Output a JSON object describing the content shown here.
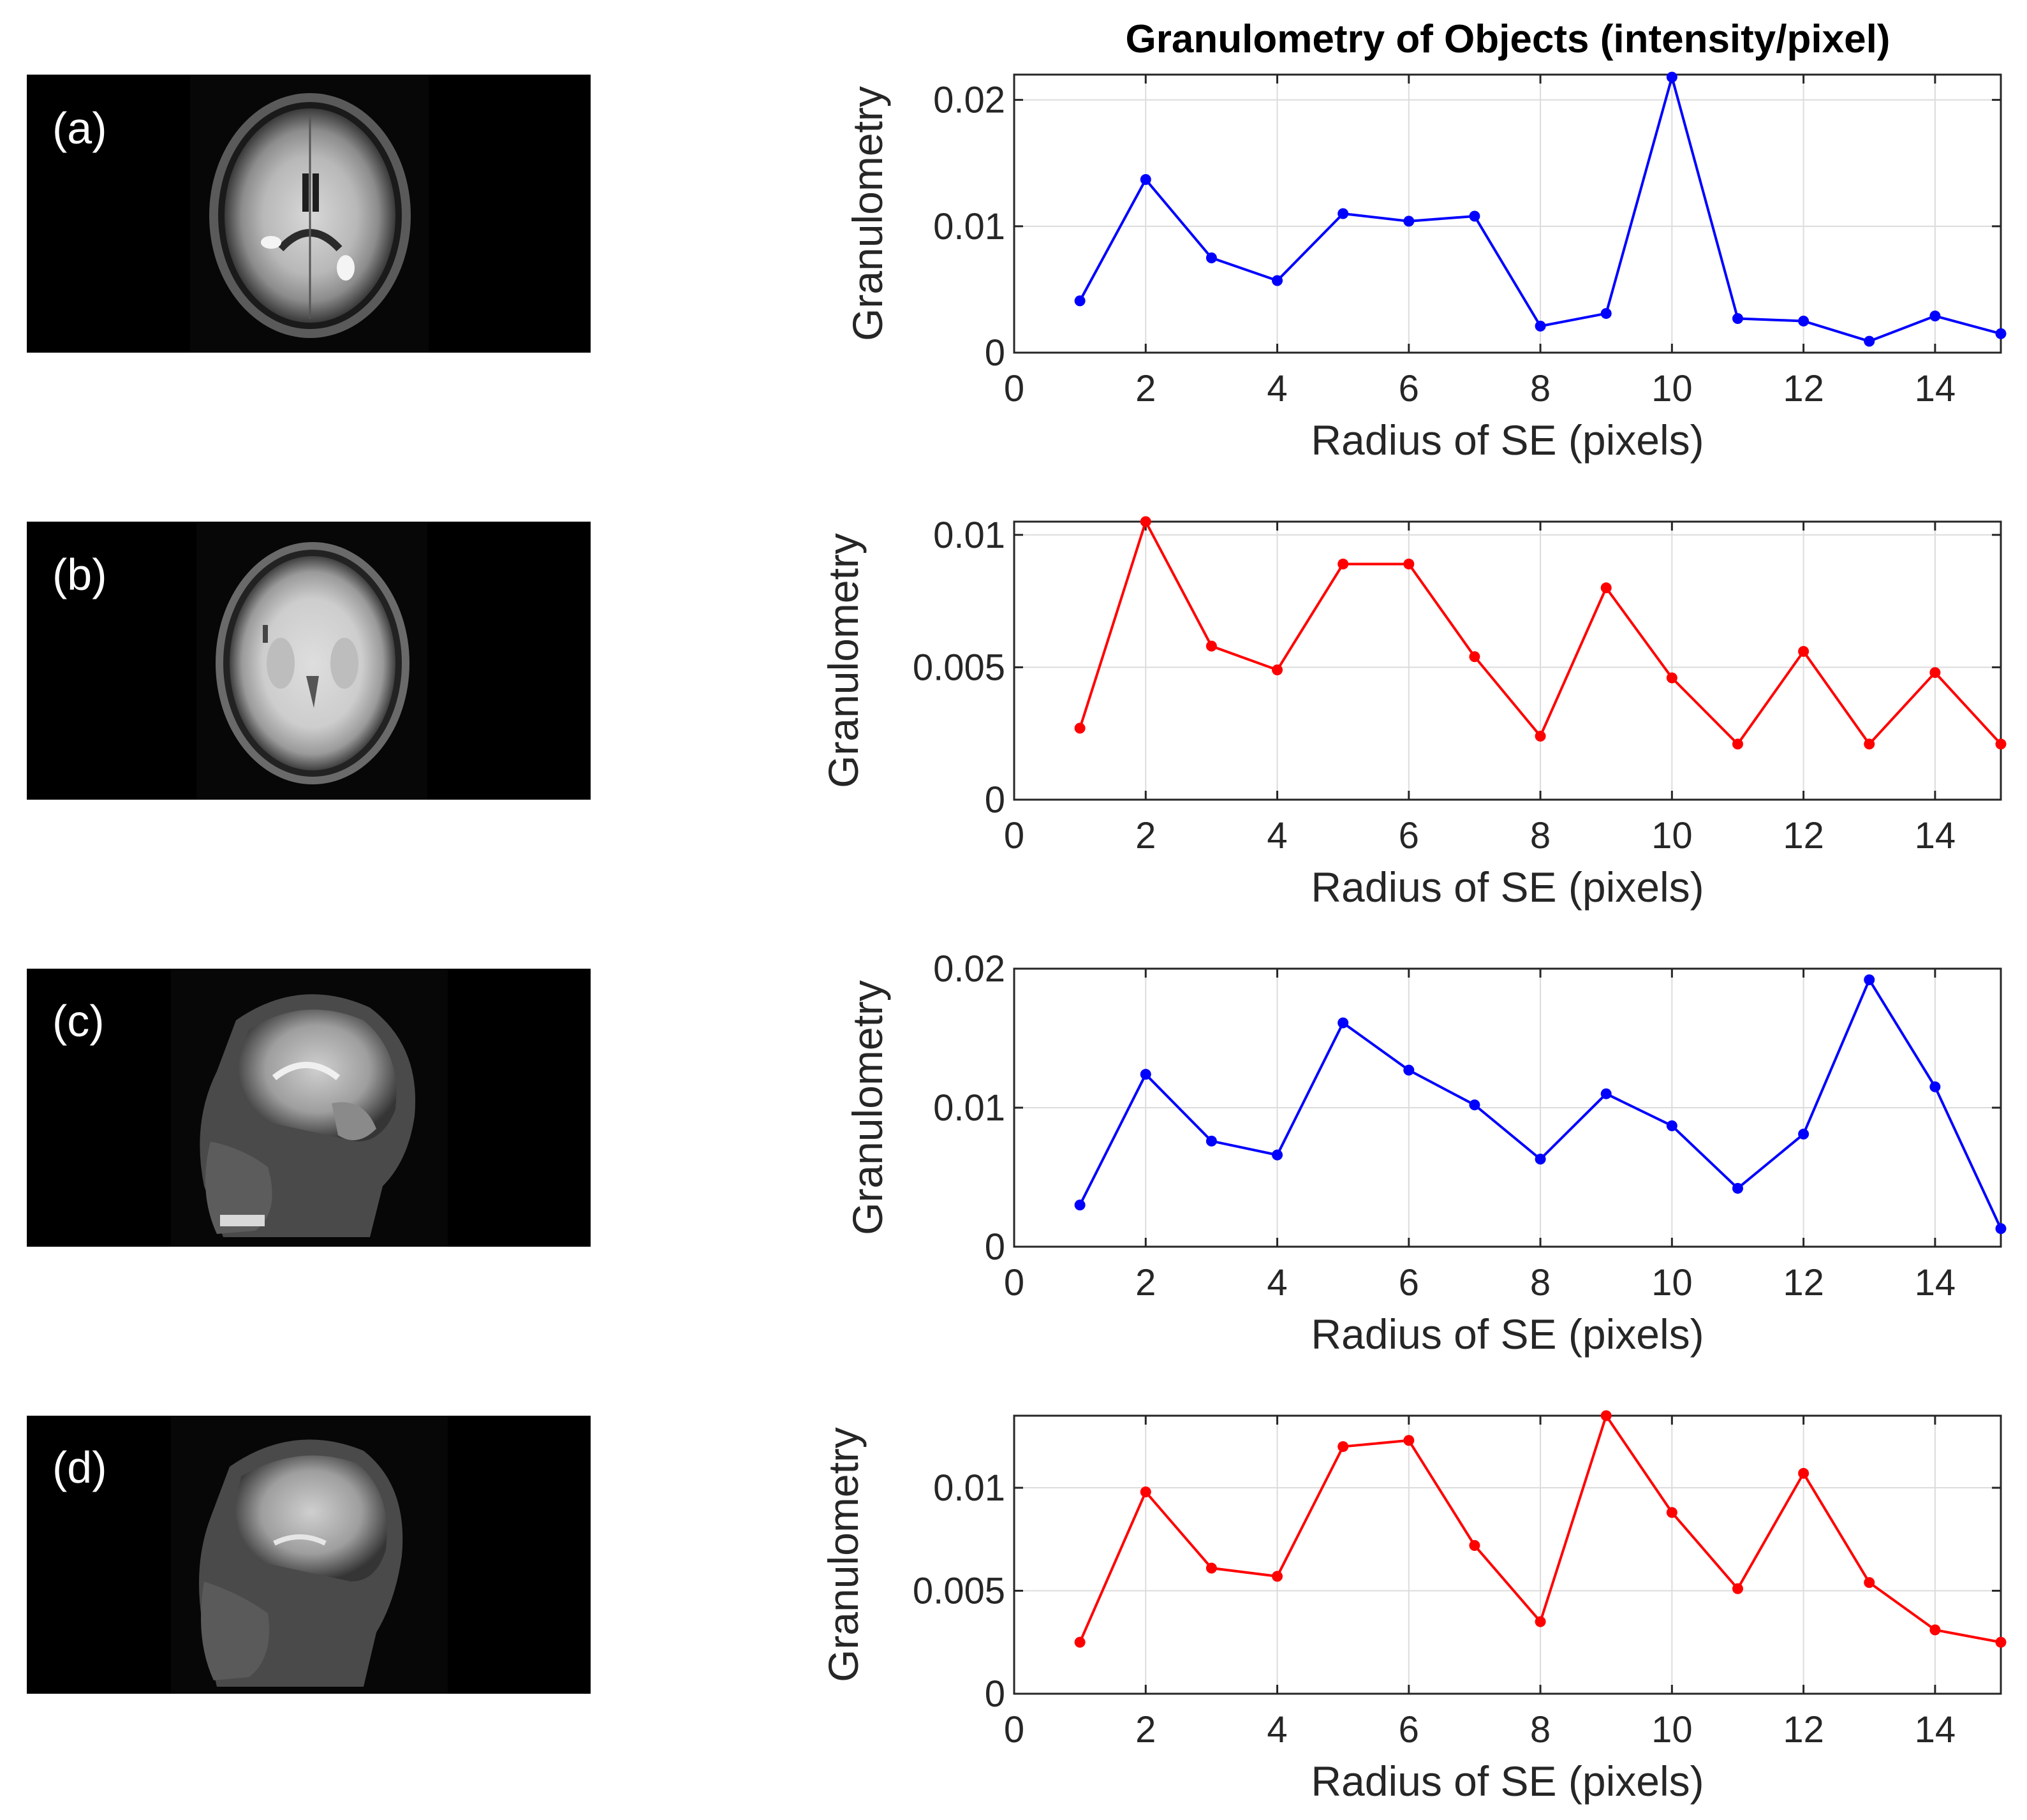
{
  "figure": {
    "title": "Granulometry of Objects (intensity/pixel)",
    "colors": {
      "blue": "#0000ff",
      "red": "#ff0000",
      "grid": "#dcdcdc",
      "axis": "#262626"
    }
  },
  "panels": [
    {
      "label": "(a)",
      "image_alt": "axial brain MRI slice"
    },
    {
      "label": "(b)",
      "image_alt": "axial brain MRI slice"
    },
    {
      "label": "(c)",
      "image_alt": "sagittal head MRI slice"
    },
    {
      "label": "(d)",
      "image_alt": "sagittal head MRI slice"
    }
  ],
  "chart_data": [
    {
      "type": "line",
      "title": "Granulometry of Objects (intensity/pixel)",
      "xlabel": "Radius of SE (pixels)",
      "ylabel": "Granulometry",
      "color": "#0000ff",
      "xlim": [
        0,
        15
      ],
      "ylim": [
        0,
        0.022
      ],
      "xticks": [
        0,
        2,
        4,
        6,
        8,
        10,
        12,
        14
      ],
      "xtick_labels": [
        "0",
        "2",
        "4",
        "6",
        "8",
        "10",
        "12",
        "14"
      ],
      "yticks": [
        0,
        0.01,
        0.02
      ],
      "ytick_labels": [
        "0",
        "0.01",
        "0.02"
      ],
      "grid": true,
      "x": [
        1,
        2,
        3,
        4,
        5,
        6,
        7,
        8,
        9,
        10,
        11,
        12,
        13,
        14,
        15
      ],
      "values": [
        0.0041,
        0.0137,
        0.0075,
        0.0057,
        0.011,
        0.0104,
        0.0108,
        0.0021,
        0.0031,
        0.0218,
        0.0027,
        0.0025,
        0.0009,
        0.0029,
        0.0015
      ]
    },
    {
      "type": "line",
      "title": "",
      "xlabel": "Radius of SE (pixels)",
      "ylabel": "Granulometry",
      "color": "#ff0000",
      "xlim": [
        0,
        15
      ],
      "ylim": [
        0,
        0.0105
      ],
      "xticks": [
        0,
        2,
        4,
        6,
        8,
        10,
        12,
        14
      ],
      "xtick_labels": [
        "0",
        "2",
        "4",
        "6",
        "8",
        "10",
        "12",
        "14"
      ],
      "yticks": [
        0,
        0.005,
        0.01
      ],
      "ytick_labels": [
        "0",
        "0.005",
        "0.01"
      ],
      "grid": true,
      "x": [
        1,
        2,
        3,
        4,
        5,
        6,
        7,
        8,
        9,
        10,
        11,
        12,
        13,
        14,
        15
      ],
      "values": [
        0.0027,
        0.0105,
        0.0058,
        0.0049,
        0.0089,
        0.0089,
        0.0054,
        0.0024,
        0.008,
        0.0046,
        0.0021,
        0.0056,
        0.0021,
        0.0048,
        0.0021
      ]
    },
    {
      "type": "line",
      "title": "",
      "xlabel": "Radius of SE (pixels)",
      "ylabel": "Granulometry",
      "color": "#0000ff",
      "xlim": [
        0,
        15
      ],
      "ylim": [
        0,
        0.02
      ],
      "xticks": [
        0,
        2,
        4,
        6,
        8,
        10,
        12,
        14
      ],
      "xtick_labels": [
        "0",
        "2",
        "4",
        "6",
        "8",
        "10",
        "12",
        "14"
      ],
      "yticks": [
        0,
        0.01,
        0.02
      ],
      "ytick_labels": [
        "0",
        "0.01",
        "0.02"
      ],
      "grid": true,
      "x": [
        1,
        2,
        3,
        4,
        5,
        6,
        7,
        8,
        9,
        10,
        11,
        12,
        13,
        14,
        15
      ],
      "values": [
        0.003,
        0.0124,
        0.0076,
        0.0066,
        0.0161,
        0.0127,
        0.0102,
        0.0063,
        0.011,
        0.0087,
        0.0042,
        0.0081,
        0.0192,
        0.0115,
        0.0013
      ]
    },
    {
      "type": "line",
      "title": "",
      "xlabel": "Radius of SE (pixels)",
      "ylabel": "Granulometry",
      "color": "#ff0000",
      "xlim": [
        0,
        15
      ],
      "ylim": [
        0,
        0.0135
      ],
      "xticks": [
        0,
        2,
        4,
        6,
        8,
        10,
        12,
        14
      ],
      "xtick_labels": [
        "0",
        "2",
        "4",
        "6",
        "8",
        "10",
        "12",
        "14"
      ],
      "yticks": [
        0,
        0.005,
        0.01
      ],
      "ytick_labels": [
        "0",
        "0.005",
        "0.01"
      ],
      "grid": true,
      "x": [
        1,
        2,
        3,
        4,
        5,
        6,
        7,
        8,
        9,
        10,
        11,
        12,
        13,
        14,
        15
      ],
      "values": [
        0.0025,
        0.0098,
        0.0061,
        0.0057,
        0.012,
        0.0123,
        0.0072,
        0.0035,
        0.0135,
        0.0088,
        0.0051,
        0.0107,
        0.0054,
        0.0031,
        0.0025
      ]
    }
  ]
}
